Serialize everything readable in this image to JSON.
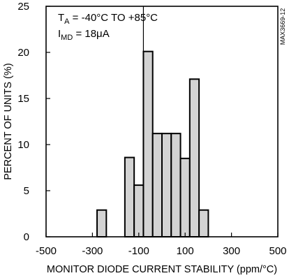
{
  "chart_data": {
    "type": "bar",
    "chart_id": "MAX3669-12",
    "xlabel": "MONITOR DIODE CURRENT STABILITY (ppm/°C)",
    "ylabel": "PERCENT OF UNITS (%)",
    "xlim": [
      -500,
      500
    ],
    "ylim": [
      0,
      25
    ],
    "xticks": [
      -500,
      -300,
      -100,
      100,
      300,
      500
    ],
    "yticks": [
      0,
      5,
      10,
      15,
      20,
      25
    ],
    "grid": false,
    "bin_width": 40,
    "bars": [
      {
        "x": -260,
        "value": 2.9
      },
      {
        "x": -140,
        "value": 8.6
      },
      {
        "x": -100,
        "value": 5.6
      },
      {
        "x": -60,
        "value": 20.1
      },
      {
        "x": -20,
        "value": 11.2
      },
      {
        "x": 20,
        "value": 11.2
      },
      {
        "x": 60,
        "value": 11.2
      },
      {
        "x": 100,
        "value": 8.5
      },
      {
        "x": 140,
        "value": 17.1
      },
      {
        "x": 180,
        "value": 2.9
      }
    ],
    "reference_line_x": -80,
    "annotation": {
      "line1": {
        "main": "T",
        "sub": "A",
        "rest": " = -40°C TO +85°C"
      },
      "line2": {
        "main": "I",
        "sub": "MD",
        "rest": " = 18μA"
      }
    },
    "bar_fill": "#d3d3d3",
    "bar_stroke": "#000000"
  }
}
